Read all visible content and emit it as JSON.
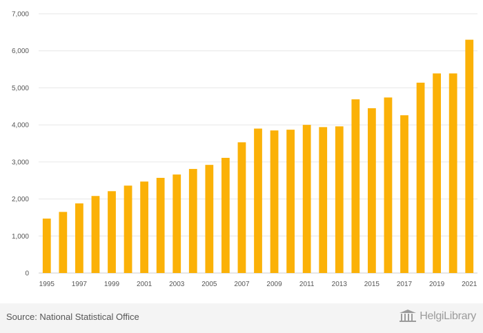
{
  "chart_data": {
    "type": "bar",
    "title": "",
    "xlabel": "",
    "ylabel": "",
    "ylim": [
      0,
      7000
    ],
    "yticks": [
      0,
      1000,
      2000,
      3000,
      4000,
      5000,
      6000,
      7000
    ],
    "ytick_labels": [
      "0",
      "1,000",
      "2,000",
      "3,000",
      "4,000",
      "5,000",
      "6,000",
      "7,000"
    ],
    "categories": [
      "1995",
      "1996",
      "1997",
      "1998",
      "1999",
      "2000",
      "2001",
      "2002",
      "2003",
      "2004",
      "2005",
      "2006",
      "2007",
      "2008",
      "2009",
      "2010",
      "2011",
      "2012",
      "2013",
      "2014",
      "2015",
      "2016",
      "2017",
      "2018",
      "2019",
      "2020",
      "2021"
    ],
    "xtick_labels": [
      "1995",
      "1997",
      "1999",
      "2001",
      "2003",
      "2005",
      "2007",
      "2009",
      "2011",
      "2013",
      "2015",
      "2017",
      "2019",
      "2021"
    ],
    "values": [
      1470,
      1650,
      1880,
      2080,
      2210,
      2360,
      2470,
      2570,
      2660,
      2810,
      2920,
      3110,
      3530,
      3900,
      3850,
      3870,
      4000,
      3940,
      3960,
      4690,
      4450,
      4740,
      4260,
      5140,
      5390,
      5390,
      6300
    ],
    "bar_color": "#fbb107",
    "grid": true,
    "grid_color": "#e6e6e6"
  },
  "footer": {
    "source": "Source: National Statistical Office",
    "logo_text": "HelgiLibrary"
  }
}
